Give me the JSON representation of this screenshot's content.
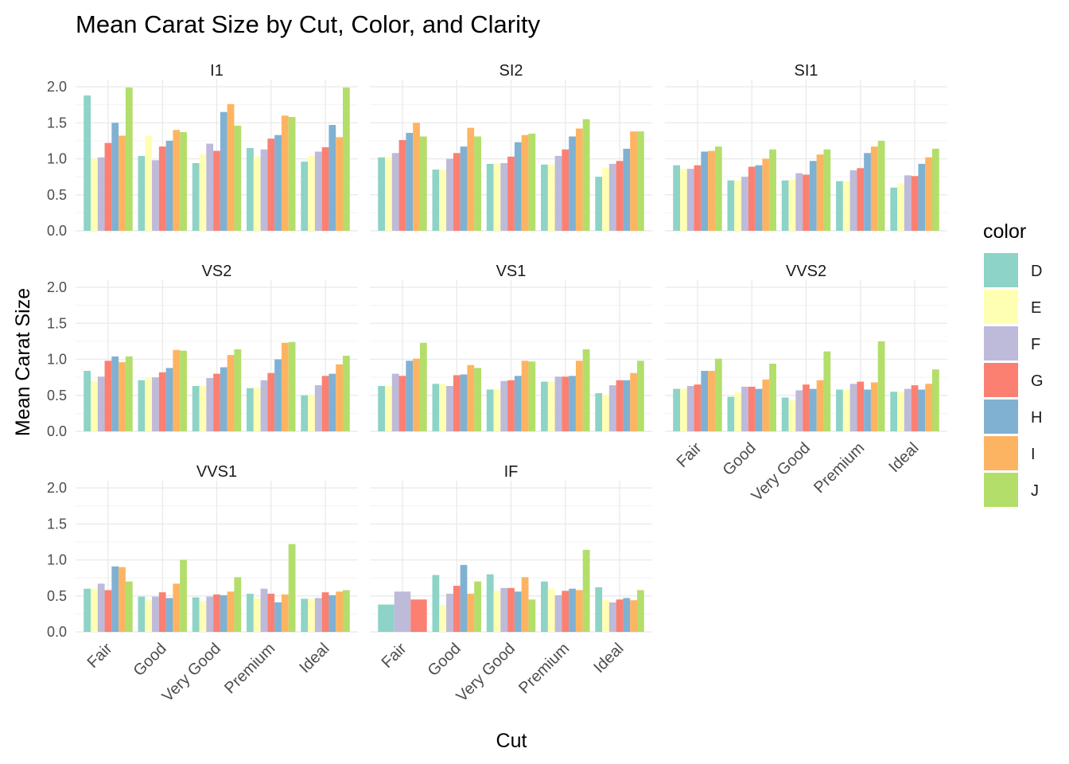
{
  "chart_data": {
    "type": "bar",
    "title": "Mean Carat Size by Cut, Color, and Clarity",
    "xlabel": "Cut",
    "ylabel": "Mean Carat Size",
    "ylim": [
      0,
      2.1
    ],
    "yticks": [
      "0.0",
      "0.5",
      "1.0",
      "1.5",
      "2.0"
    ],
    "ytick_values": [
      0,
      0.5,
      1,
      1.5,
      2
    ],
    "grid": true,
    "legend_position": "right",
    "categories": [
      "Fair",
      "Good",
      "Very Good",
      "Premium",
      "Ideal"
    ],
    "legend": {
      "title": "color",
      "entries": [
        {
          "name": "D",
          "color": "#8DD3C7"
        },
        {
          "name": "E",
          "color": "#FFFFB3"
        },
        {
          "name": "F",
          "color": "#BEBADA"
        },
        {
          "name": "G",
          "color": "#FB8072"
        },
        {
          "name": "H",
          "color": "#80B1D3"
        },
        {
          "name": "I",
          "color": "#FDB462"
        },
        {
          "name": "J",
          "color": "#B3DE69"
        }
      ]
    },
    "facets": [
      {
        "label": "I1",
        "values": [
          [
            1.88,
            1.0,
            1.02,
            1.22,
            1.5,
            1.32,
            1.99
          ],
          [
            1.04,
            1.32,
            0.98,
            1.17,
            1.25,
            1.4,
            1.37
          ],
          [
            0.94,
            1.06,
            1.21,
            1.11,
            1.65,
            1.76,
            1.46
          ],
          [
            1.15,
            1.03,
            1.13,
            1.28,
            1.33,
            1.6,
            1.58
          ],
          [
            0.96,
            1.04,
            1.1,
            1.16,
            1.47,
            1.3,
            1.99
          ]
        ]
      },
      {
        "label": "SI2",
        "values": [
          [
            1.02,
            1.02,
            1.08,
            1.26,
            1.36,
            1.5,
            1.31
          ],
          [
            0.85,
            0.85,
            1.0,
            1.08,
            1.17,
            1.43,
            1.31
          ],
          [
            0.93,
            0.93,
            0.94,
            1.03,
            1.23,
            1.33,
            1.35
          ],
          [
            0.92,
            0.92,
            1.04,
            1.13,
            1.31,
            1.42,
            1.55
          ],
          [
            0.75,
            0.88,
            0.93,
            0.97,
            1.14,
            1.38,
            1.38
          ]
        ]
      },
      {
        "label": "SI1",
        "values": [
          [
            0.91,
            0.86,
            0.86,
            0.91,
            1.1,
            1.11,
            1.17
          ],
          [
            0.7,
            0.7,
            0.75,
            0.89,
            0.91,
            1.0,
            1.13
          ],
          [
            0.7,
            0.71,
            0.8,
            0.78,
            0.97,
            1.06,
            1.13
          ],
          [
            0.69,
            0.69,
            0.84,
            0.87,
            1.08,
            1.17,
            1.25
          ],
          [
            0.6,
            0.66,
            0.77,
            0.76,
            0.93,
            1.02,
            1.14
          ]
        ]
      },
      {
        "label": "VS2",
        "values": [
          [
            0.84,
            0.7,
            0.76,
            0.98,
            1.04,
            0.96,
            1.04
          ],
          [
            0.71,
            0.75,
            0.75,
            0.82,
            0.88,
            1.13,
            1.12
          ],
          [
            0.63,
            0.63,
            0.74,
            0.8,
            0.89,
            1.06,
            1.14
          ],
          [
            0.6,
            0.61,
            0.71,
            0.81,
            1.0,
            1.23,
            1.24
          ],
          [
            0.5,
            0.5,
            0.64,
            0.77,
            0.8,
            0.93,
            1.05
          ]
        ]
      },
      {
        "label": "VS1",
        "values": [
          [
            0.63,
            0.63,
            0.8,
            0.77,
            0.98,
            1.01,
            1.23
          ],
          [
            0.66,
            0.66,
            0.63,
            0.78,
            0.79,
            0.92,
            0.88
          ],
          [
            0.58,
            0.59,
            0.7,
            0.71,
            0.77,
            0.98,
            0.97
          ],
          [
            0.69,
            0.69,
            0.76,
            0.76,
            0.77,
            0.98,
            1.14
          ],
          [
            0.53,
            0.51,
            0.64,
            0.71,
            0.71,
            0.81,
            0.98
          ]
        ]
      },
      {
        "label": "VVS2",
        "values": [
          [
            0.59,
            0.59,
            0.63,
            0.65,
            0.84,
            0.84,
            1.01
          ],
          [
            0.48,
            0.54,
            0.62,
            0.62,
            0.59,
            0.72,
            0.94
          ],
          [
            0.47,
            0.43,
            0.57,
            0.65,
            0.59,
            0.71,
            1.11
          ],
          [
            0.58,
            0.58,
            0.66,
            0.69,
            0.58,
            0.68,
            1.25
          ],
          [
            0.55,
            0.55,
            0.59,
            0.64,
            0.58,
            0.66,
            0.86
          ]
        ]
      },
      {
        "label": "VVS1",
        "values": [
          [
            0.6,
            0.6,
            0.67,
            0.58,
            0.91,
            0.9,
            0.7
          ],
          [
            0.49,
            0.44,
            0.49,
            0.55,
            0.47,
            0.67,
            1.0
          ],
          [
            0.48,
            0.43,
            0.49,
            0.52,
            0.51,
            0.56,
            0.76
          ],
          [
            0.53,
            0.47,
            0.6,
            0.53,
            0.41,
            0.52,
            1.22
          ],
          [
            0.46,
            0.46,
            0.47,
            0.55,
            0.51,
            0.56,
            0.58
          ]
        ]
      },
      {
        "label": "IF",
        "values": [
          [
            0.38,
            null,
            0.56,
            0.45,
            null,
            null,
            null
          ],
          [
            0.79,
            0.37,
            0.53,
            0.64,
            0.93,
            0.53,
            0.7
          ],
          [
            0.8,
            0.57,
            0.61,
            0.61,
            0.56,
            0.76,
            0.45
          ],
          [
            0.7,
            0.6,
            0.51,
            0.57,
            0.6,
            0.58,
            1.14
          ],
          [
            0.62,
            0.44,
            0.41,
            0.45,
            0.47,
            0.44,
            0.58
          ]
        ]
      }
    ]
  }
}
